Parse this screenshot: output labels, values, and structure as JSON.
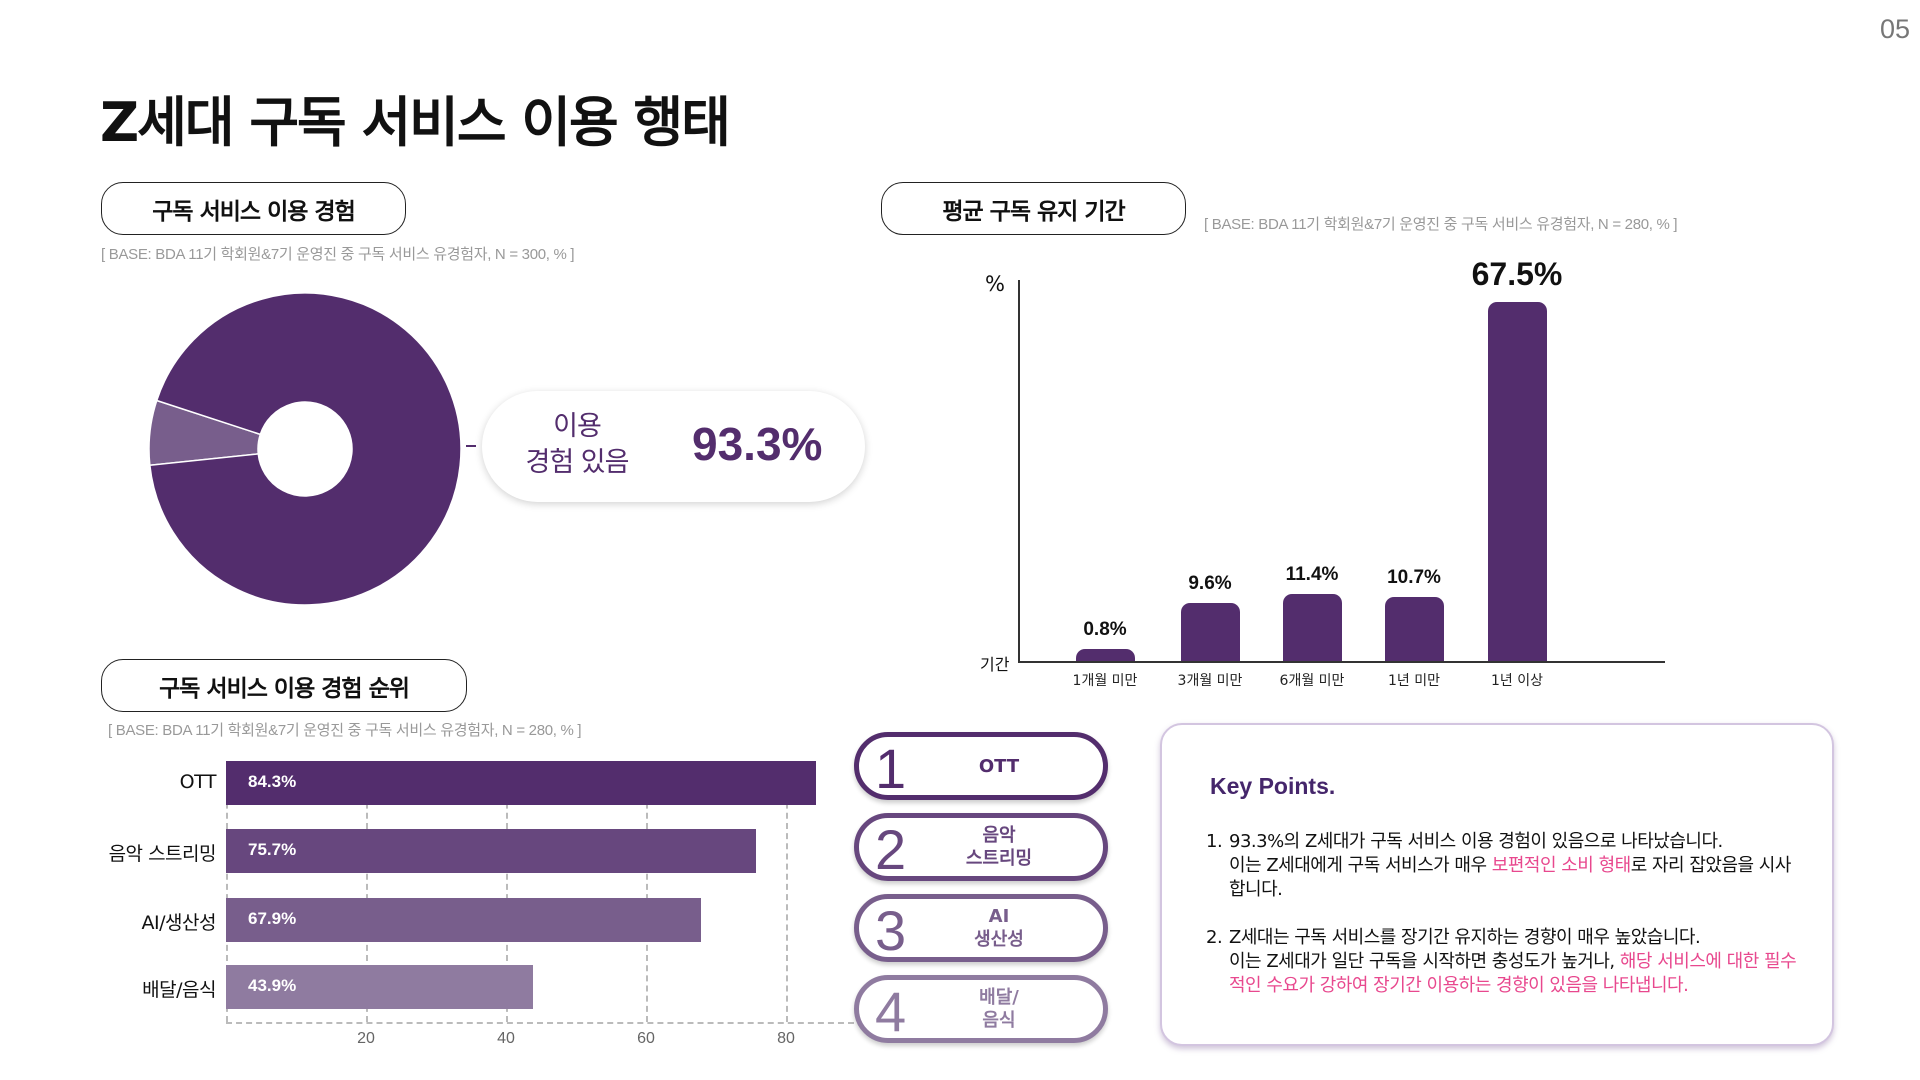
{
  "page_number": "05",
  "title": "Z세대 구독 서비스 이용 행태",
  "colors": {
    "primary": "#532d6d",
    "rank2": "#67477e",
    "rank3": "#785e8c",
    "rank4": "#8f7ba0",
    "highlight": "#e8488e"
  },
  "section1": {
    "heading": "구독 서비스 이용 경험",
    "base": "[ BASE: BDA 11기 학회원&7기 운영진 중 구독 서비스 유경험자, N = 300, % ]",
    "callout_label": "이용\n경험 있음",
    "callout_value": "93.3%"
  },
  "section2": {
    "heading": "평균 구독 유지 기간",
    "base": "[ BASE: BDA 11기 학회원&7기 운영진 중 구독 서비스 유경험자, N = 280, % ]"
  },
  "section3": {
    "heading": "구독 서비스 이용 경험 순위",
    "base": "[ BASE: BDA 11기 학회원&7기 운영진 중 구독 서비스 유경험자, N = 280, % ]",
    "ranks": [
      {
        "number": "1",
        "label": "OTT"
      },
      {
        "number": "2",
        "label": "음악\n스트리밍"
      },
      {
        "number": "3",
        "label": "AI\n생산성"
      },
      {
        "number": "4",
        "label": "배달/\n음식"
      }
    ]
  },
  "chart_data": [
    {
      "type": "pie",
      "donut": true,
      "values": [
        93.3,
        6.7
      ],
      "labels": [
        "이용 경험 있음",
        ""
      ],
      "colors": [
        "#532d6d",
        "#785e8c"
      ]
    },
    {
      "type": "bar",
      "ylabel": "%",
      "xlabel": "기간",
      "categories": [
        "1개월 미만",
        "3개월 미만",
        "6개월 미만",
        "1년 미만",
        "1년 이상"
      ],
      "values": [
        0.8,
        9.6,
        11.4,
        10.7,
        67.5
      ],
      "data_labels": [
        "0.8%",
        "9.6%",
        "11.4%",
        "10.7%",
        "67.5%"
      ],
      "color": "#532d6d"
    },
    {
      "type": "bar",
      "orientation": "horizontal",
      "categories": [
        "OTT",
        "음악 스트리밍",
        "AI/생산성",
        "배달/음식"
      ],
      "values": [
        84.3,
        75.7,
        67.9,
        43.9
      ],
      "data_labels": [
        "84.3%",
        "75.7%",
        "67.9%",
        "43.9%"
      ],
      "colors": [
        "#532d6d",
        "#67477e",
        "#785e8c",
        "#8f7ba0"
      ],
      "xticks": [
        "20",
        "40",
        "60",
        "80"
      ],
      "grid": "dashed vertical"
    }
  ],
  "key_points": {
    "title": "Key Points.",
    "items": [
      {
        "number": "1.",
        "line1": "93.3%의 Z세대가 구독 서비스 이용 경험이 있음으로 나타났습니다.",
        "pre": "이는 Z세대에게 구독 서비스가 매우 ",
        "highlight": "보편적인 소비 형태",
        "post": "로 자리 잡았음을 시사합니다."
      },
      {
        "number": "2.",
        "line1": "Z세대는 구독 서비스를 장기간 유지하는 경향이 매우 높았습니다.",
        "pre": "이는 Z세대가 일단 구독을 시작하면 충성도가 높거나, ",
        "highlight": "해당 서비스에 대한 필수적인 수요가 강하여 장기간 이용하는 경향이 있음을 나타냅니다.",
        "post": ""
      }
    ]
  }
}
